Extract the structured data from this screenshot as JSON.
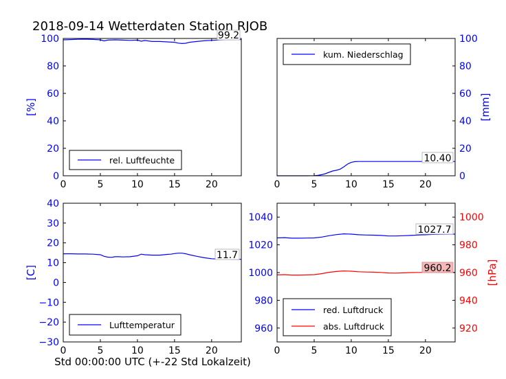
{
  "figure": {
    "title": "2018-09-14 Wetterdaten Station RJOB",
    "xlabel": "Std 00:00:00 UTC (+-22 Std Lokalzeit)"
  },
  "colors": {
    "blue": "#0000ff",
    "red": "#ff0000",
    "black": "#000000",
    "value_box_red": "#f4b8b8"
  },
  "chart_data": [
    {
      "type": "line",
      "panel": "humidity",
      "xlim": [
        0,
        24
      ],
      "ylim": [
        0,
        100
      ],
      "ylabel": "[%]",
      "xticks": [
        0,
        5,
        10,
        15,
        20
      ],
      "yticks": [
        0,
        20,
        40,
        60,
        80,
        100
      ],
      "axis_side": "left",
      "axis_color": "#0000ff",
      "legend": "bottom-left",
      "current_value": "99.2",
      "series": [
        {
          "name": "rel. Luftfeuchte",
          "color": "#0000ff",
          "x": [
            0,
            1,
            2,
            3,
            4,
            5,
            5.5,
            6,
            7,
            8,
            9,
            10,
            10.5,
            11,
            12,
            13,
            14,
            15,
            15.5,
            16,
            16.5,
            17,
            18,
            19,
            20,
            21,
            22,
            23,
            24
          ],
          "y": [
            99,
            99.2,
            99.4,
            99.5,
            99.3,
            99,
            98.2,
            98.8,
            99,
            98.8,
            98.6,
            98.8,
            98,
            98.5,
            97.8,
            97.8,
            97.5,
            97.2,
            96.6,
            96.3,
            96.5,
            97.2,
            97.8,
            98.3,
            98.6,
            98.9,
            99.1,
            99.2,
            99.2
          ]
        }
      ]
    },
    {
      "type": "line",
      "panel": "precipitation",
      "xlim": [
        0,
        24
      ],
      "ylim": [
        0,
        100
      ],
      "ylabel": "[mm]",
      "xticks": [
        0,
        5,
        10,
        15,
        20
      ],
      "yticks": [
        0,
        20,
        40,
        60,
        80,
        100
      ],
      "axis_side": "right",
      "axis_color": "#0000ff",
      "legend": "top-left",
      "current_value": "10.40",
      "series": [
        {
          "name": "kum. Niederschlag",
          "color": "#0000ff",
          "x": [
            0,
            4,
            5,
            5.5,
            6,
            6.5,
            7,
            7.5,
            8,
            8.5,
            9,
            9.5,
            10,
            10.5,
            11,
            12,
            14,
            16,
            18,
            20,
            22,
            24
          ],
          "y": [
            0,
            0,
            0.1,
            0.3,
            0.8,
            1.5,
            2.5,
            3.5,
            4,
            4.8,
            6.5,
            8.5,
            9.8,
            10.3,
            10.4,
            10.4,
            10.4,
            10.4,
            10.4,
            10.4,
            10.4,
            10.4
          ]
        }
      ]
    },
    {
      "type": "line",
      "panel": "temperature",
      "xlim": [
        0,
        24
      ],
      "ylim": [
        -30,
        40
      ],
      "ylabel": "[C]",
      "xticks": [
        0,
        5,
        10,
        15,
        20
      ],
      "yticks": [
        -30,
        -20,
        -10,
        0,
        10,
        20,
        30,
        40
      ],
      "axis_side": "left",
      "axis_color": "#0000ff",
      "legend": "bottom-left",
      "current_value": "11.7",
      "series": [
        {
          "name": "Lufttemperatur",
          "color": "#0000ff",
          "x": [
            0,
            1,
            2,
            3,
            4,
            5,
            5.5,
            6,
            6.5,
            7,
            7.5,
            8,
            9,
            10,
            10.5,
            11,
            12,
            13,
            14,
            14.5,
            15,
            15.5,
            16,
            16.5,
            17,
            18,
            19,
            20,
            21,
            22,
            23,
            24
          ],
          "y": [
            14.5,
            14.5,
            14.4,
            14.4,
            14.3,
            14,
            13.2,
            12.8,
            12.7,
            13,
            13,
            12.9,
            13,
            13.5,
            14.3,
            14,
            13.8,
            13.8,
            14.2,
            14.3,
            14.6,
            14.8,
            14.8,
            14.5,
            14,
            13.2,
            12.5,
            12,
            11.8,
            11.8,
            11.7,
            11.7
          ]
        }
      ]
    },
    {
      "type": "line",
      "panel": "pressure",
      "xlim": [
        0,
        24
      ],
      "ylim": [
        950,
        1050
      ],
      "ylim_right": [
        910,
        1010
      ],
      "ylabel_right": "[hPa]",
      "xticks": [
        0,
        5,
        10,
        15,
        20
      ],
      "yticks": [
        960,
        980,
        1000,
        1020,
        1040
      ],
      "yticks_right": [
        920,
        940,
        960,
        980,
        1000
      ],
      "axis_color": "#0000ff",
      "axis_color_right": "#ff0000",
      "legend": "bottom-left",
      "current_value": "1027.7",
      "current_value_right": "960.2",
      "series": [
        {
          "name": "red. Luftdruck",
          "color": "#0000ff",
          "axis": "left",
          "x": [
            0,
            1,
            2,
            3,
            4,
            5,
            6,
            7,
            8,
            9,
            10,
            11,
            12,
            13,
            14,
            15,
            16,
            17,
            18,
            19,
            20,
            21,
            22,
            23,
            24
          ],
          "y": [
            1025,
            1025.2,
            1024.8,
            1024.8,
            1024.9,
            1025,
            1025.6,
            1026.6,
            1027.4,
            1027.9,
            1027.7,
            1027.3,
            1027.1,
            1027,
            1026.8,
            1026.4,
            1026.4,
            1026.6,
            1026.8,
            1027.1,
            1027.3,
            1027.5,
            1027.6,
            1027.7,
            1027.7
          ]
        },
        {
          "name": "abs. Luftdruck",
          "color": "#ff0000",
          "axis": "right",
          "x": [
            0,
            1,
            2,
            3,
            4,
            5,
            6,
            7,
            8,
            9,
            10,
            11,
            12,
            13,
            14,
            15,
            16,
            17,
            18,
            19,
            20,
            21,
            22,
            23,
            24
          ],
          "y": [
            958.3,
            958.5,
            958.2,
            958.2,
            958.3,
            958.5,
            959.2,
            960.2,
            960.8,
            961.2,
            961,
            960.6,
            960.4,
            960.3,
            960.1,
            959.7,
            959.6,
            959.8,
            960,
            960.1,
            960.1,
            960.2,
            960.2,
            960.2,
            960.2
          ]
        }
      ]
    }
  ]
}
